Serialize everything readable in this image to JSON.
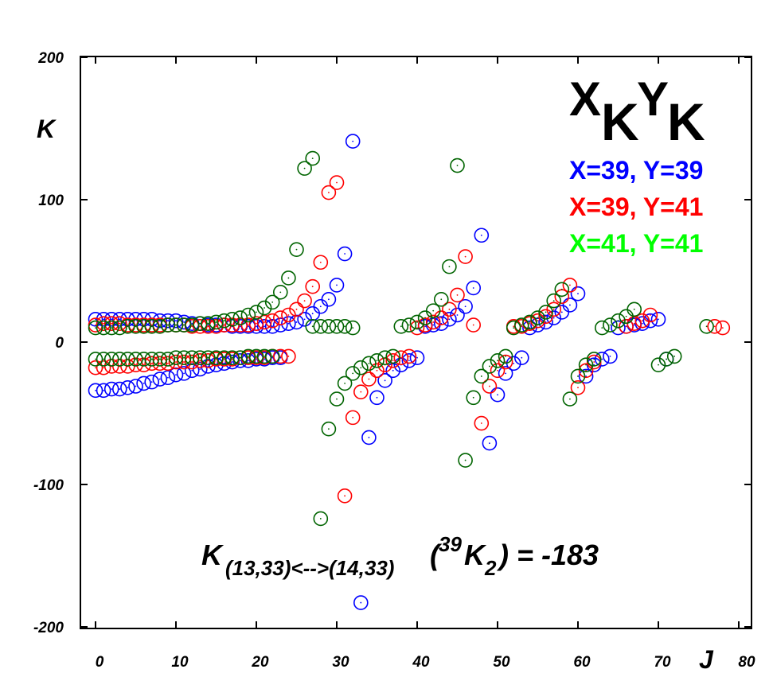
{
  "chart_data": {
    "type": "scatter",
    "title": {
      "main_x": "X",
      "sub_x": "K",
      "main_y": "Y",
      "sub_y": "K"
    },
    "xlabel": "J",
    "ylabel": "K",
    "xlim": [
      -2,
      81
    ],
    "ylim": [
      -200,
      200
    ],
    "x_ticks": [
      "0",
      "10",
      "20",
      "30",
      "40",
      "50",
      "60",
      "70",
      "80"
    ],
    "y_ticks": [
      "200",
      "100",
      "0",
      "-100",
      "-200"
    ],
    "legend_placement": "top-right",
    "annotation": {
      "k": "K",
      "subscript": "(13,33)<-->(14,33)",
      "open_paren": "(",
      "isotope": "39",
      "k2": "K",
      "k2_sub": "2",
      "tail": ") = -183"
    },
    "series": [
      {
        "name": "X=39, Y=39",
        "color": "#0000ff",
        "points": [
          [
            0,
            16
          ],
          [
            1,
            16
          ],
          [
            2,
            16
          ],
          [
            3,
            16
          ],
          [
            4,
            16
          ],
          [
            5,
            16
          ],
          [
            6,
            16
          ],
          [
            7,
            16
          ],
          [
            8,
            15
          ],
          [
            9,
            15
          ],
          [
            10,
            15
          ],
          [
            11,
            14
          ],
          [
            12,
            13
          ],
          [
            13,
            13
          ],
          [
            14,
            12
          ],
          [
            15,
            12
          ],
          [
            16,
            12
          ],
          [
            17,
            11
          ],
          [
            18,
            11
          ],
          [
            19,
            11
          ],
          [
            20,
            11
          ],
          [
            21,
            11
          ],
          [
            22,
            11
          ],
          [
            23,
            12
          ],
          [
            24,
            13
          ],
          [
            25,
            14
          ],
          [
            26,
            16
          ],
          [
            27,
            20
          ],
          [
            28,
            25
          ],
          [
            29,
            30
          ],
          [
            30,
            40
          ],
          [
            31,
            62
          ],
          [
            32,
            141
          ],
          [
            0,
            -34
          ],
          [
            1,
            -34
          ],
          [
            2,
            -33
          ],
          [
            3,
            -33
          ],
          [
            4,
            -32
          ],
          [
            5,
            -31
          ],
          [
            6,
            -29
          ],
          [
            7,
            -28
          ],
          [
            8,
            -26
          ],
          [
            9,
            -25
          ],
          [
            10,
            -23
          ],
          [
            11,
            -22
          ],
          [
            12,
            -20
          ],
          [
            13,
            -19
          ],
          [
            14,
            -17
          ],
          [
            15,
            -16
          ],
          [
            16,
            -15
          ],
          [
            17,
            -14
          ],
          [
            18,
            -13
          ],
          [
            19,
            -13
          ],
          [
            20,
            -12
          ],
          [
            21,
            -12
          ],
          [
            22,
            -11
          ],
          [
            23,
            -11
          ],
          [
            33,
            -183
          ],
          [
            34,
            -67
          ],
          [
            35,
            -39
          ],
          [
            36,
            -27
          ],
          [
            37,
            -20
          ],
          [
            38,
            -16
          ],
          [
            39,
            -13
          ],
          [
            40,
            -11
          ],
          [
            41,
            11
          ],
          [
            42,
            12
          ],
          [
            43,
            13
          ],
          [
            44,
            16
          ],
          [
            45,
            19
          ],
          [
            46,
            25
          ],
          [
            47,
            38
          ],
          [
            48,
            75
          ],
          [
            49,
            -71
          ],
          [
            50,
            -37
          ],
          [
            51,
            -22
          ],
          [
            52,
            -15
          ],
          [
            53,
            -11
          ],
          [
            54,
            10
          ],
          [
            55,
            12
          ],
          [
            56,
            14
          ],
          [
            57,
            17
          ],
          [
            58,
            21
          ],
          [
            59,
            26
          ],
          [
            60,
            34
          ],
          [
            61,
            -24
          ],
          [
            62,
            -16
          ],
          [
            63,
            -12
          ],
          [
            64,
            -10
          ],
          [
            65,
            10
          ],
          [
            66,
            11
          ],
          [
            67,
            12
          ],
          [
            68,
            13
          ],
          [
            69,
            15
          ],
          [
            70,
            16
          ],
          [
            71,
            -12
          ]
        ]
      },
      {
        "name": "X=39, Y=41",
        "color": "#ff0000",
        "points": [
          [
            0,
            12
          ],
          [
            1,
            13
          ],
          [
            2,
            13
          ],
          [
            3,
            13
          ],
          [
            4,
            12
          ],
          [
            5,
            12
          ],
          [
            6,
            12
          ],
          [
            7,
            12
          ],
          [
            8,
            12
          ],
          [
            9,
            12
          ],
          [
            10,
            12
          ],
          [
            11,
            12
          ],
          [
            12,
            11
          ],
          [
            13,
            11
          ],
          [
            14,
            11
          ],
          [
            15,
            11
          ],
          [
            16,
            12
          ],
          [
            17,
            12
          ],
          [
            18,
            12
          ],
          [
            19,
            12
          ],
          [
            20,
            13
          ],
          [
            21,
            14
          ],
          [
            22,
            15
          ],
          [
            23,
            17
          ],
          [
            24,
            19
          ],
          [
            25,
            23
          ],
          [
            26,
            29
          ],
          [
            27,
            39
          ],
          [
            28,
            56
          ],
          [
            29,
            105
          ],
          [
            30,
            112
          ],
          [
            0,
            -18
          ],
          [
            1,
            -18
          ],
          [
            2,
            -17
          ],
          [
            3,
            -17
          ],
          [
            4,
            -17
          ],
          [
            5,
            -16
          ],
          [
            6,
            -16
          ],
          [
            7,
            -15
          ],
          [
            8,
            -15
          ],
          [
            9,
            -15
          ],
          [
            10,
            -14
          ],
          [
            11,
            -14
          ],
          [
            12,
            -14
          ],
          [
            13,
            -13
          ],
          [
            14,
            -13
          ],
          [
            15,
            -12
          ],
          [
            16,
            -12
          ],
          [
            17,
            -12
          ],
          [
            18,
            -11
          ],
          [
            19,
            -11
          ],
          [
            20,
            -11
          ],
          [
            21,
            -11
          ],
          [
            22,
            -10
          ],
          [
            23,
            -10
          ],
          [
            24,
            -10
          ],
          [
            31,
            -108
          ],
          [
            32,
            -53
          ],
          [
            33,
            -35
          ],
          [
            34,
            -26
          ],
          [
            35,
            -20
          ],
          [
            36,
            -16
          ],
          [
            37,
            -13
          ],
          [
            38,
            -11
          ],
          [
            39,
            -10
          ],
          [
            40,
            10
          ],
          [
            41,
            12
          ],
          [
            42,
            14
          ],
          [
            43,
            17
          ],
          [
            44,
            23
          ],
          [
            45,
            33
          ],
          [
            46,
            60
          ],
          [
            47,
            12
          ],
          [
            48,
            -57
          ],
          [
            49,
            -31
          ],
          [
            50,
            -20
          ],
          [
            51,
            -14
          ],
          [
            52,
            11
          ],
          [
            53,
            11
          ],
          [
            54,
            13
          ],
          [
            55,
            15
          ],
          [
            56,
            18
          ],
          [
            57,
            23
          ],
          [
            58,
            32
          ],
          [
            59,
            40
          ],
          [
            60,
            -32
          ],
          [
            61,
            -20
          ],
          [
            62,
            -14
          ],
          [
            66,
            11
          ],
          [
            67,
            13
          ],
          [
            68,
            15
          ],
          [
            69,
            19
          ],
          [
            77,
            11
          ],
          [
            78,
            10
          ]
        ]
      },
      {
        "name": "X=41, Y=41",
        "color": "#006400",
        "legend_color": "#00ff00",
        "points": [
          [
            0,
            10
          ],
          [
            1,
            10
          ],
          [
            2,
            10
          ],
          [
            3,
            10
          ],
          [
            4,
            11
          ],
          [
            5,
            11
          ],
          [
            6,
            11
          ],
          [
            7,
            11
          ],
          [
            8,
            11
          ],
          [
            9,
            12
          ],
          [
            10,
            12
          ],
          [
            11,
            12
          ],
          [
            12,
            12
          ],
          [
            13,
            13
          ],
          [
            14,
            13
          ],
          [
            15,
            14
          ],
          [
            16,
            15
          ],
          [
            17,
            16
          ],
          [
            18,
            17
          ],
          [
            19,
            19
          ],
          [
            20,
            21
          ],
          [
            21,
            24
          ],
          [
            22,
            28
          ],
          [
            23,
            35
          ],
          [
            24,
            45
          ],
          [
            25,
            65
          ],
          [
            26,
            122
          ],
          [
            27,
            129
          ],
          [
            0,
            -12
          ],
          [
            1,
            -12
          ],
          [
            2,
            -12
          ],
          [
            3,
            -12
          ],
          [
            4,
            -12
          ],
          [
            5,
            -12
          ],
          [
            6,
            -12
          ],
          [
            7,
            -12
          ],
          [
            8,
            -12
          ],
          [
            9,
            -12
          ],
          [
            10,
            -11
          ],
          [
            11,
            -11
          ],
          [
            12,
            -11
          ],
          [
            13,
            -11
          ],
          [
            14,
            -11
          ],
          [
            15,
            -11
          ],
          [
            16,
            -11
          ],
          [
            17,
            -11
          ],
          [
            18,
            -11
          ],
          [
            19,
            -10
          ],
          [
            20,
            -10
          ],
          [
            21,
            -10
          ],
          [
            22,
            -10
          ],
          [
            27,
            11
          ],
          [
            28,
            11
          ],
          [
            29,
            11
          ],
          [
            30,
            11
          ],
          [
            31,
            11
          ],
          [
            32,
            10
          ],
          [
            28,
            -124
          ],
          [
            29,
            -61
          ],
          [
            30,
            -40
          ],
          [
            31,
            -29
          ],
          [
            32,
            -22
          ],
          [
            33,
            -18
          ],
          [
            34,
            -15
          ],
          [
            35,
            -13
          ],
          [
            36,
            -11
          ],
          [
            37,
            -10
          ],
          [
            38,
            11
          ],
          [
            39,
            12
          ],
          [
            40,
            14
          ],
          [
            41,
            17
          ],
          [
            42,
            22
          ],
          [
            43,
            30
          ],
          [
            44,
            53
          ],
          [
            45,
            124
          ],
          [
            46,
            -83
          ],
          [
            47,
            -39
          ],
          [
            48,
            -24
          ],
          [
            49,
            -17
          ],
          [
            50,
            -13
          ],
          [
            51,
            -10
          ],
          [
            52,
            10
          ],
          [
            53,
            12
          ],
          [
            54,
            14
          ],
          [
            55,
            17
          ],
          [
            56,
            21
          ],
          [
            57,
            29
          ],
          [
            58,
            37
          ],
          [
            59,
            -40
          ],
          [
            60,
            -24
          ],
          [
            61,
            -16
          ],
          [
            62,
            -12
          ],
          [
            63,
            10
          ],
          [
            64,
            12
          ],
          [
            65,
            15
          ],
          [
            66,
            18
          ],
          [
            67,
            23
          ],
          [
            70,
            -16
          ],
          [
            71,
            -12
          ],
          [
            72,
            -10
          ],
          [
            76,
            11
          ]
        ]
      }
    ]
  }
}
